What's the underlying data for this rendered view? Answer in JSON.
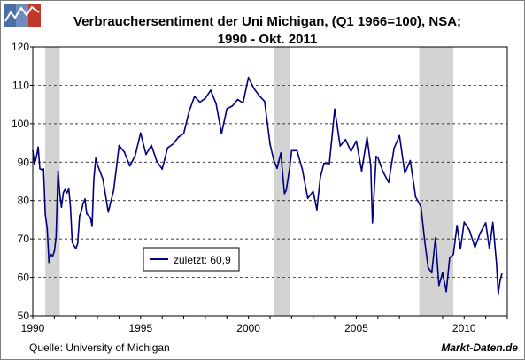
{
  "chart_data": {
    "type": "line",
    "title": "Verbrauchersentiment der Uni Michigan, (Q1 1966=100), NSA;",
    "subtitle": "1990 - Okt. 2011",
    "xlabel": "",
    "ylabel": "",
    "xlim": [
      1990,
      2012
    ],
    "ylim": [
      50,
      120
    ],
    "x_ticks": [
      "1990",
      "1995",
      "2000",
      "2005",
      "2010"
    ],
    "y_ticks": [
      "50",
      "60",
      "70",
      "80",
      "90",
      "100",
      "110",
      "120"
    ],
    "grid": "horizontal dashed",
    "recessions": [
      [
        1990.58,
        1991.25
      ],
      [
        2001.17,
        2001.92
      ],
      [
        2007.92,
        2009.5
      ]
    ],
    "legend": {
      "label": "zuletzt: 60,9",
      "placement": "lower-left"
    },
    "series": [
      {
        "color": "#000080",
        "x": [
          1990.0,
          1990.08,
          1990.17,
          1990.25,
          1990.33,
          1990.42,
          1990.5,
          1990.58,
          1990.67,
          1990.75,
          1990.83,
          1990.92,
          1991.0,
          1991.08,
          1991.17,
          1991.25,
          1991.33,
          1991.42,
          1991.5,
          1991.58,
          1991.67,
          1991.75,
          1991.83,
          1991.92,
          1992.0,
          1992.08,
          1992.17,
          1992.25,
          1992.33,
          1992.42,
          1992.5,
          1992.58,
          1992.67,
          1992.75,
          1992.83,
          1992.92,
          1993.0,
          1993.25,
          1993.5,
          1993.75,
          1994.0,
          1994.25,
          1994.5,
          1994.75,
          1995.0,
          1995.25,
          1995.5,
          1995.75,
          1996.0,
          1996.25,
          1996.5,
          1996.75,
          1997.0,
          1997.25,
          1997.5,
          1997.75,
          1998.0,
          1998.25,
          1998.5,
          1998.75,
          1999.0,
          1999.25,
          1999.5,
          1999.75,
          2000.0,
          2000.25,
          2000.5,
          2000.75,
          2001.0,
          2001.17,
          2001.33,
          2001.5,
          2001.67,
          2001.75,
          2001.92,
          2002.0,
          2002.25,
          2002.5,
          2002.75,
          2003.0,
          2003.17,
          2003.33,
          2003.5,
          2003.75,
          2004.0,
          2004.25,
          2004.5,
          2004.75,
          2005.0,
          2005.25,
          2005.5,
          2005.67,
          2005.75,
          2005.92,
          2006.0,
          2006.25,
          2006.5,
          2006.75,
          2007.0,
          2007.25,
          2007.5,
          2007.75,
          2008.0,
          2008.17,
          2008.33,
          2008.5,
          2008.67,
          2008.83,
          2009.0,
          2009.17,
          2009.33,
          2009.5,
          2009.67,
          2009.83,
          2010.0,
          2010.25,
          2010.5,
          2010.75,
          2011.0,
          2011.17,
          2011.33,
          2011.5,
          2011.58,
          2011.67,
          2011.75
        ],
        "y": [
          93.0,
          89.5,
          91.3,
          93.9,
          88.3,
          88.0,
          88.2,
          76.4,
          72.8,
          63.9,
          66.0,
          65.5,
          66.8,
          70.4,
          87.7,
          81.8,
          78.3,
          82.1,
          82.9,
          82.0,
          83.0,
          78.3,
          69.1,
          68.2,
          67.5,
          68.8,
          76.0,
          77.2,
          79.2,
          80.4,
          76.6,
          76.1,
          75.6,
          73.3,
          85.3,
          91.0,
          89.3,
          85.6,
          77.0,
          82.7,
          94.3,
          92.6,
          89.0,
          91.7,
          97.6,
          92.0,
          94.4,
          90.2,
          88.2,
          93.7,
          94.7,
          96.5,
          97.4,
          103.2,
          107.1,
          105.6,
          106.6,
          108.7,
          105.2,
          97.4,
          103.9,
          104.6,
          106.3,
          105.4,
          112.0,
          109.2,
          107.3,
          105.8,
          94.7,
          90.6,
          88.4,
          92.4,
          81.8,
          82.7,
          88.8,
          93.0,
          93.0,
          88.1,
          80.6,
          82.4,
          77.6,
          86.0,
          89.7,
          89.6,
          103.8,
          94.2,
          95.9,
          92.8,
          95.5,
          87.7,
          96.5,
          89.1,
          74.2,
          91.5,
          91.2,
          87.4,
          84.7,
          93.6,
          96.9,
          87.1,
          90.4,
          80.9,
          78.4,
          69.5,
          62.6,
          61.2,
          70.3,
          57.9,
          61.2,
          56.3,
          65.1,
          66.0,
          73.5,
          67.4,
          74.4,
          72.2,
          67.8,
          71.6,
          74.2,
          67.5,
          74.3,
          63.7,
          55.7,
          59.4,
          60.9
        ]
      }
    ]
  },
  "footer": {
    "source": "Quelle: University of Michigan",
    "brand": "Markt-Daten.de"
  },
  "logo": {
    "colors": [
      "#4a6fa5",
      "#ffffff",
      "#c0392b"
    ]
  }
}
